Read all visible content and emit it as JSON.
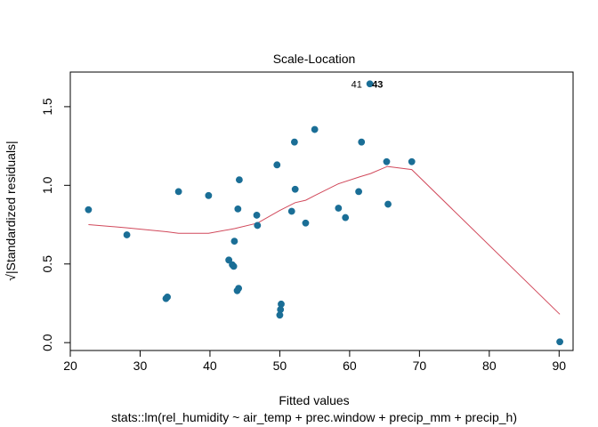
{
  "chart_data": {
    "type": "scatter",
    "title": "Scale-Location",
    "xlabel": "Fitted values",
    "ylabel": "√|Standardized residuals|",
    "subtitle": "stats::lm(rel_humidity ~ air_temp + prec.window + precip_mm + precip_h)",
    "xlim": [
      20,
      92
    ],
    "ylim": [
      -0.05,
      1.72
    ],
    "xticks": [
      20,
      30,
      40,
      50,
      60,
      70,
      80,
      90
    ],
    "yticks": [
      0.0,
      0.5,
      1.0,
      1.5
    ],
    "ytick_labels": [
      "0.0",
      "0.5",
      "1.0",
      "1.5"
    ],
    "grid": false,
    "colors": {
      "points": "#1a6e96",
      "smoother": "#d1495b",
      "axis": "#000000"
    },
    "points": [
      {
        "x": 22.6,
        "y": 0.845
      },
      {
        "x": 28.1,
        "y": 0.685
      },
      {
        "x": 33.7,
        "y": 0.28
      },
      {
        "x": 33.9,
        "y": 0.29
      },
      {
        "x": 35.5,
        "y": 0.96
      },
      {
        "x": 39.8,
        "y": 0.935
      },
      {
        "x": 42.7,
        "y": 0.525
      },
      {
        "x": 43.2,
        "y": 0.495
      },
      {
        "x": 43.4,
        "y": 0.485
      },
      {
        "x": 43.5,
        "y": 0.645
      },
      {
        "x": 43.9,
        "y": 0.33
      },
      {
        "x": 44.1,
        "y": 0.345
      },
      {
        "x": 44.0,
        "y": 0.85
      },
      {
        "x": 44.2,
        "y": 1.035
      },
      {
        "x": 46.7,
        "y": 0.81
      },
      {
        "x": 46.8,
        "y": 0.745
      },
      {
        "x": 49.6,
        "y": 1.13
      },
      {
        "x": 50.0,
        "y": 0.175
      },
      {
        "x": 50.1,
        "y": 0.21
      },
      {
        "x": 50.2,
        "y": 0.245
      },
      {
        "x": 51.7,
        "y": 0.835
      },
      {
        "x": 52.1,
        "y": 1.275
      },
      {
        "x": 52.2,
        "y": 0.975
      },
      {
        "x": 53.7,
        "y": 0.76
      },
      {
        "x": 55.0,
        "y": 1.355
      },
      {
        "x": 58.4,
        "y": 0.855
      },
      {
        "x": 59.4,
        "y": 0.795
      },
      {
        "x": 61.3,
        "y": 0.96
      },
      {
        "x": 61.7,
        "y": 1.275
      },
      {
        "x": 62.9,
        "y": 1.645
      },
      {
        "x": 65.3,
        "y": 1.15
      },
      {
        "x": 65.5,
        "y": 0.88
      },
      {
        "x": 68.9,
        "y": 1.15
      },
      {
        "x": 90.1,
        "y": 0.005
      }
    ],
    "smoother": [
      {
        "x": 22.6,
        "y": 0.75
      },
      {
        "x": 28.1,
        "y": 0.73
      },
      {
        "x": 33.8,
        "y": 0.705
      },
      {
        "x": 35.5,
        "y": 0.695
      },
      {
        "x": 39.8,
        "y": 0.695
      },
      {
        "x": 43.5,
        "y": 0.725
      },
      {
        "x": 46.8,
        "y": 0.76
      },
      {
        "x": 50.0,
        "y": 0.84
      },
      {
        "x": 52.2,
        "y": 0.89
      },
      {
        "x": 53.7,
        "y": 0.905
      },
      {
        "x": 55.0,
        "y": 0.935
      },
      {
        "x": 58.4,
        "y": 1.01
      },
      {
        "x": 61.5,
        "y": 1.055
      },
      {
        "x": 63.0,
        "y": 1.075
      },
      {
        "x": 65.4,
        "y": 1.12
      },
      {
        "x": 68.9,
        "y": 1.1
      },
      {
        "x": 90.1,
        "y": 0.18
      }
    ],
    "annotations": [
      {
        "text": "41",
        "x": 61.0,
        "y": 1.645,
        "bold": false
      },
      {
        "text": "43",
        "x": 64.0,
        "y": 1.645,
        "bold": true
      }
    ]
  }
}
